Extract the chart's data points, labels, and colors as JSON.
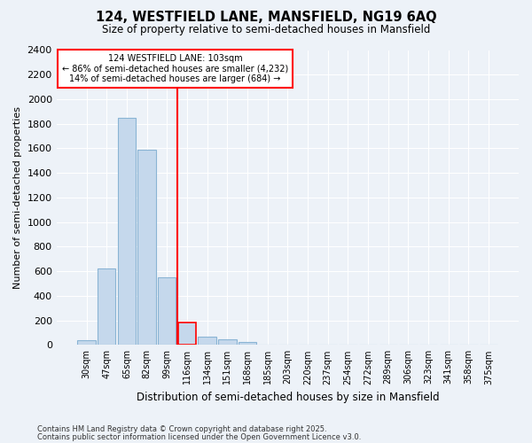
{
  "title1": "124, WESTFIELD LANE, MANSFIELD, NG19 6AQ",
  "title2": "Size of property relative to semi-detached houses in Mansfield",
  "xlabel": "Distribution of semi-detached houses by size in Mansfield",
  "ylabel": "Number of semi-detached properties",
  "footnote1": "Contains HM Land Registry data © Crown copyright and database right 2025.",
  "footnote2": "Contains public sector information licensed under the Open Government Licence v3.0.",
  "annotation_title": "124 WESTFIELD LANE: 103sqm",
  "annotation_line1": "← 86% of semi-detached houses are smaller (4,232)",
  "annotation_line2": "14% of semi-detached houses are larger (684) →",
  "bar_color": "#c5d8ec",
  "bar_edge_color": "#8ab4d4",
  "highlight_bar_edge_color": "red",
  "vline_color": "red",
  "categories": [
    "30sqm",
    "47sqm",
    "65sqm",
    "82sqm",
    "99sqm",
    "116sqm",
    "134sqm",
    "151sqm",
    "168sqm",
    "185sqm",
    "203sqm",
    "220sqm",
    "237sqm",
    "254sqm",
    "272sqm",
    "289sqm",
    "306sqm",
    "323sqm",
    "341sqm",
    "358sqm",
    "375sqm"
  ],
  "values": [
    35,
    620,
    1850,
    1590,
    550,
    185,
    70,
    45,
    25,
    0,
    0,
    0,
    0,
    0,
    0,
    0,
    0,
    0,
    0,
    0,
    0
  ],
  "highlight_index": 5,
  "vline_index": 4.5,
  "ylim": [
    0,
    2400
  ],
  "yticks": [
    0,
    200,
    400,
    600,
    800,
    1000,
    1200,
    1400,
    1600,
    1800,
    2000,
    2200,
    2400
  ],
  "bg_color": "#edf2f8",
  "plot_bg_color": "#edf2f8",
  "grid_color": "#ffffff",
  "annotation_box_color": "white",
  "annotation_box_edge": "red"
}
